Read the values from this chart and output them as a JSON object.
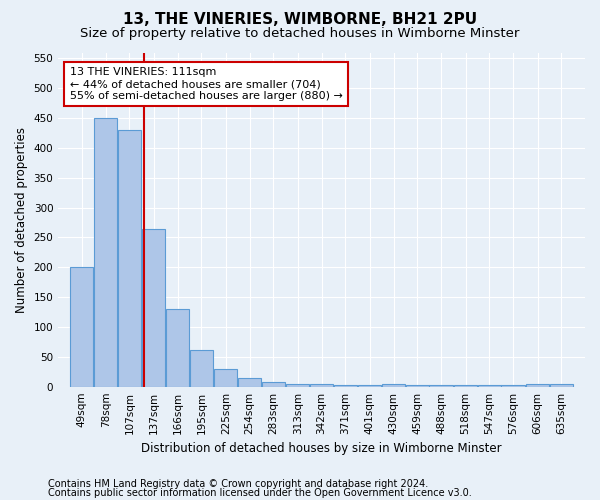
{
  "title": "13, THE VINERIES, WIMBORNE, BH21 2PU",
  "subtitle": "Size of property relative to detached houses in Wimborne Minster",
  "xlabel": "Distribution of detached houses by size in Wimborne Minster",
  "ylabel": "Number of detached properties",
  "footnote1": "Contains HM Land Registry data © Crown copyright and database right 2024.",
  "footnote2": "Contains public sector information licensed under the Open Government Licence v3.0.",
  "bar_labels": [
    "49sqm",
    "78sqm",
    "107sqm",
    "137sqm",
    "166sqm",
    "195sqm",
    "225sqm",
    "254sqm",
    "283sqm",
    "313sqm",
    "342sqm",
    "371sqm",
    "401sqm",
    "430sqm",
    "459sqm",
    "488sqm",
    "518sqm",
    "547sqm",
    "576sqm",
    "606sqm",
    "635sqm"
  ],
  "bar_heights": [
    200,
    450,
    430,
    265,
    130,
    62,
    30,
    15,
    8,
    5,
    5,
    2,
    2,
    5,
    2,
    2,
    2,
    2,
    2,
    5,
    5
  ],
  "bar_color": "#aec6e8",
  "bar_edge_color": "#5b9bd5",
  "annotation_line1": "13 THE VINERIES: 111sqm",
  "annotation_line2": "← 44% of detached houses are smaller (704)",
  "annotation_line3": "55% of semi-detached houses are larger (880) →",
  "annotation_box_color": "#ffffff",
  "annotation_box_edge_color": "#cc0000",
  "vline_color": "#cc0000",
  "property_sqm": 111,
  "bin_width": 29,
  "ylim": [
    0,
    560
  ],
  "yticks": [
    0,
    50,
    100,
    150,
    200,
    250,
    300,
    350,
    400,
    450,
    500,
    550
  ],
  "bg_color": "#e8f0f8",
  "grid_color": "#ffffff",
  "title_fontsize": 11,
  "subtitle_fontsize": 9.5,
  "axis_label_fontsize": 8.5,
  "tick_fontsize": 7.5,
  "footnote_fontsize": 7.0
}
